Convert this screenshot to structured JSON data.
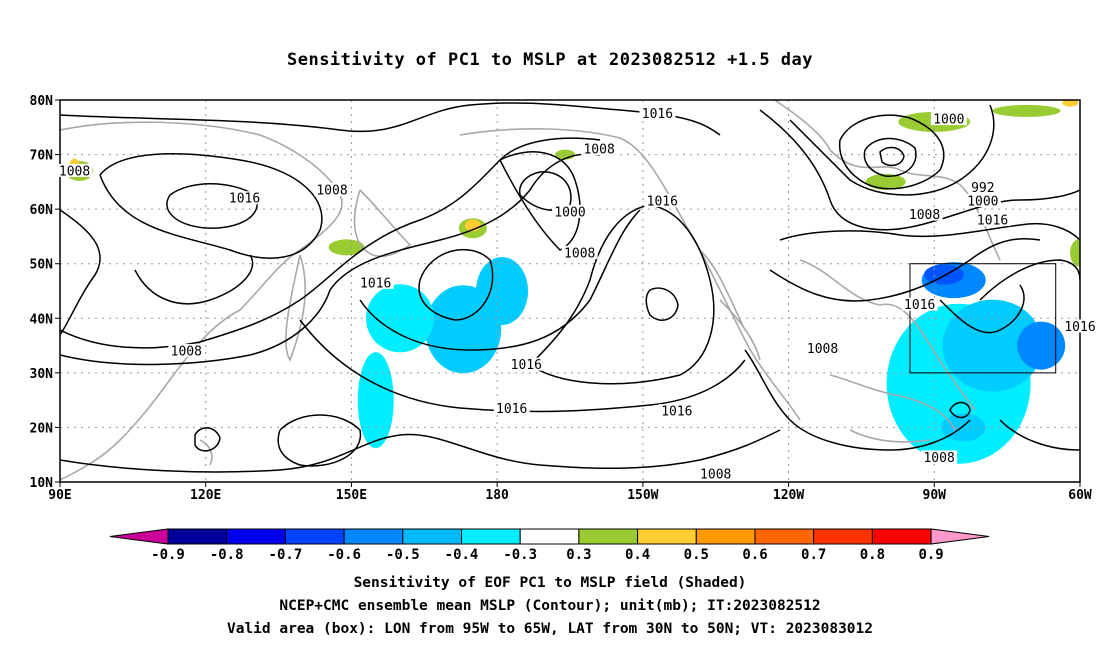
{
  "title": "Sensitivity of PC1 to MSLP at 2023082512 +1.5 day",
  "map": {
    "lon_range": [
      90,
      300
    ],
    "lat_range": [
      10,
      80
    ],
    "lat_ticks": [
      {
        "lat": 80,
        "label": "80N"
      },
      {
        "lat": 70,
        "label": "70N"
      },
      {
        "lat": 60,
        "label": "60N"
      },
      {
        "lat": 50,
        "label": "50N"
      },
      {
        "lat": 40,
        "label": "40N"
      },
      {
        "lat": 30,
        "label": "30N"
      },
      {
        "lat": 20,
        "label": "20N"
      },
      {
        "lat": 10,
        "label": "10N"
      }
    ],
    "lon_ticks": [
      {
        "lon": 90,
        "label": "90E"
      },
      {
        "lon": 120,
        "label": "120E"
      },
      {
        "lon": 150,
        "label": "150E"
      },
      {
        "lon": 180,
        "label": "180"
      },
      {
        "lon": 210,
        "label": "150W"
      },
      {
        "lon": 240,
        "label": "120W"
      },
      {
        "lon": 270,
        "label": "90W"
      },
      {
        "lon": 300,
        "label": "60W"
      }
    ],
    "valid_box": {
      "lon_min": 265,
      "lon_max": 295,
      "lat_min": 30,
      "lat_max": 50
    },
    "contour_labels": [
      {
        "text": "1016",
        "lon": 213,
        "lat": 77.5
      },
      {
        "text": "1000",
        "lon": 273,
        "lat": 76.5
      },
      {
        "text": "1008",
        "lon": 93,
        "lat": 67
      },
      {
        "text": "1008",
        "lon": 201,
        "lat": 71
      },
      {
        "text": "1016",
        "lon": 128,
        "lat": 62
      },
      {
        "text": "1008",
        "lon": 146,
        "lat": 63.5
      },
      {
        "text": "992",
        "lon": 280,
        "lat": 64
      },
      {
        "text": "1000",
        "lon": 280,
        "lat": 61.5
      },
      {
        "text": "1000",
        "lon": 195,
        "lat": 59.5
      },
      {
        "text": "1016",
        "lon": 214,
        "lat": 61.5
      },
      {
        "text": "1008",
        "lon": 268,
        "lat": 59
      },
      {
        "text": "1016",
        "lon": 282,
        "lat": 58
      },
      {
        "text": "1008",
        "lon": 197,
        "lat": 52
      },
      {
        "text": "1016",
        "lon": 155,
        "lat": 46.5
      },
      {
        "text": "1016",
        "lon": 267,
        "lat": 42.5
      },
      {
        "text": "1016",
        "lon": 300,
        "lat": 38.5
      },
      {
        "text": "1008",
        "lon": 116,
        "lat": 34
      },
      {
        "text": "1008",
        "lon": 247,
        "lat": 34.5
      },
      {
        "text": "1016",
        "lon": 186,
        "lat": 31.5
      },
      {
        "text": "1016",
        "lon": 183,
        "lat": 23.5
      },
      {
        "text": "1016",
        "lon": 217,
        "lat": 23
      },
      {
        "text": "1008",
        "lon": 225,
        "lat": 11.5
      },
      {
        "text": "1008",
        "lon": 271,
        "lat": 14.5
      }
    ],
    "shading": [
      {
        "value": -0.5,
        "color": "#00ccff",
        "lon": 173,
        "lat": 38,
        "rx": 38,
        "ry": 44
      },
      {
        "value": -0.4,
        "color": "#00eeff",
        "lon": 160,
        "lat": 40,
        "rx": 34,
        "ry": 34
      },
      {
        "value": -0.5,
        "color": "#00ccff",
        "lon": 181,
        "lat": 45,
        "rx": 26,
        "ry": 34
      },
      {
        "value": -0.4,
        "color": "#00eeff",
        "lon": 155,
        "lat": 25,
        "rx": 18,
        "ry": 48
      },
      {
        "value": -0.4,
        "color": "#00eeff",
        "lon": 275,
        "lat": 28,
        "rx": 72,
        "ry": 80
      },
      {
        "value": -0.5,
        "color": "#00ccff",
        "lon": 282,
        "lat": 35,
        "rx": 50,
        "ry": 46
      },
      {
        "value": -0.6,
        "color": "#0088ff",
        "lon": 274,
        "lat": 47,
        "rx": 32,
        "ry": 18
      },
      {
        "value": -0.7,
        "color": "#0055ff",
        "lon": 272,
        "lat": 48,
        "rx": 20,
        "ry": 10
      },
      {
        "value": -0.6,
        "color": "#0088ff",
        "lon": 292,
        "lat": 35,
        "rx": 24,
        "ry": 24
      },
      {
        "value": -0.5,
        "color": "#00ccff",
        "lon": 276,
        "lat": 20,
        "rx": 22,
        "ry": 14
      },
      {
        "value": 0.3,
        "color": "#99cc33",
        "lon": 270,
        "lat": 76,
        "rx": 36,
        "ry": 10
      },
      {
        "value": 0.3,
        "color": "#99cc33",
        "lon": 289,
        "lat": 78,
        "rx": 34,
        "ry": 6
      },
      {
        "value": 0.3,
        "color": "#99cc33",
        "lon": 260,
        "lat": 65,
        "rx": 20,
        "ry": 8
      },
      {
        "value": 0.3,
        "color": "#99cc33",
        "lon": 94,
        "lat": 67,
        "rx": 14,
        "ry": 10
      },
      {
        "value": 0.3,
        "color": "#99cc33",
        "lon": 175,
        "lat": 56.5,
        "rx": 14,
        "ry": 10
      },
      {
        "value": 0.3,
        "color": "#99cc33",
        "lon": 149,
        "lat": 53,
        "rx": 18,
        "ry": 8
      },
      {
        "value": 0.3,
        "color": "#99cc33",
        "lon": 300,
        "lat": 52,
        "rx": 10,
        "ry": 14
      },
      {
        "value": 0.3,
        "color": "#99cc33",
        "lon": 194,
        "lat": 70,
        "rx": 10,
        "ry": 5
      },
      {
        "value": 0.5,
        "color": "#ffcc33",
        "lon": 175,
        "lat": 57,
        "rx": 8,
        "ry": 6
      },
      {
        "value": 0.5,
        "color": "#ffcc33",
        "lon": 93,
        "lat": 68,
        "rx": 5,
        "ry": 7
      },
      {
        "value": 0.5,
        "color": "#ffcc33",
        "lon": 298,
        "lat": 79.5,
        "rx": 8,
        "ry": 4
      }
    ]
  },
  "colorbar": {
    "colors": [
      "#cc0099",
      "#000099",
      "#0000ee",
      "#0044ff",
      "#0088ff",
      "#00bbff",
      "#00eeff",
      "#ffffff",
      "#99cc33",
      "#ffcc33",
      "#ff9900",
      "#ff6600",
      "#ff3300",
      "#ff0000",
      "#ff99cc"
    ],
    "labels": [
      "-0.9",
      "-0.8",
      "-0.7",
      "-0.6",
      "-0.5",
      "-0.4",
      "-0.3",
      "0.3",
      "0.4",
      "0.5",
      "0.6",
      "0.7",
      "0.8",
      "0.9"
    ]
  },
  "caption": {
    "line1": "Sensitivity of EOF PC1 to MSLP field (Shaded)",
    "line2": "NCEP+CMC ensemble mean MSLP (Contour); unit(mb); IT:2023082512",
    "line3": "Valid area (box): LON from 95W to 65W, LAT from 30N to 50N; VT: 2023083012"
  }
}
